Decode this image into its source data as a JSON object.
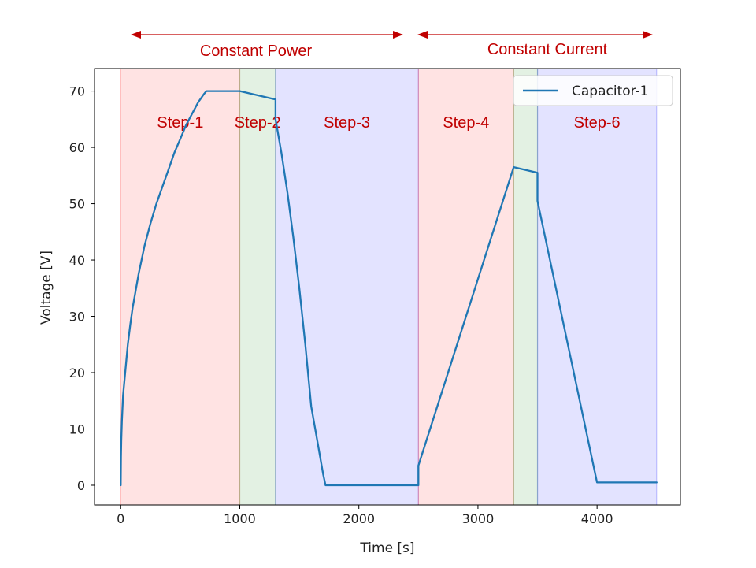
{
  "chart_data": {
    "type": "line",
    "xlabel": "Time [s]",
    "ylabel": "Voltage [V]",
    "xlim": [
      -220,
      4700
    ],
    "ylim": [
      -3.5,
      74
    ],
    "xticks": [
      0,
      1000,
      2000,
      3000,
      4000
    ],
    "yticks": [
      0,
      10,
      20,
      30,
      40,
      50,
      60,
      70
    ],
    "grid": false,
    "legend": "top-right",
    "series": [
      {
        "name": "Capacitor-1",
        "color": "#1f77b4",
        "x": [
          0,
          2,
          5,
          10,
          20,
          40,
          60,
          80,
          100,
          150,
          200,
          250,
          300,
          350,
          400,
          450,
          500,
          550,
          600,
          650,
          700,
          720,
          1000,
          1300,
          1300,
          1350,
          1400,
          1450,
          1500,
          1550,
          1600,
          1650,
          1700,
          1720,
          1720,
          2500,
          2500,
          3300,
          3500,
          3500,
          4000,
          4500
        ],
        "y": [
          0,
          5,
          8,
          11.5,
          16,
          20.5,
          25,
          28.5,
          31.5,
          37.5,
          42.5,
          46.5,
          50,
          53,
          56,
          59,
          61.5,
          64,
          66,
          68,
          69.5,
          70,
          70,
          68.5,
          65,
          59,
          52,
          44,
          35,
          25,
          14,
          8,
          2,
          0,
          0,
          0,
          3.5,
          56.5,
          55.5,
          50.5,
          0.5,
          0.5
        ]
      }
    ],
    "regions": [
      {
        "label": "Step-1",
        "x_start": 0,
        "x_end": 1000,
        "color": "#ff0000"
      },
      {
        "label": "Step-2",
        "x_start": 1000,
        "x_end": 1300,
        "color": "#008000"
      },
      {
        "label": "Step-3",
        "x_start": 1300,
        "x_end": 2500,
        "color": "#0000ff"
      },
      {
        "label": "Step-4",
        "x_start": 2500,
        "x_end": 3300,
        "color": "#ff0000"
      },
      {
        "label": "",
        "x_start": 3300,
        "x_end": 3500,
        "color": "#008000"
      },
      {
        "label": "Step-6",
        "x_start": 3500,
        "x_end": 4500,
        "color": "#0000ff"
      }
    ],
    "annotations": [
      {
        "text": "Constant Power",
        "color": "#c00000"
      },
      {
        "text": "Constant Current",
        "color": "#c00000"
      }
    ]
  }
}
